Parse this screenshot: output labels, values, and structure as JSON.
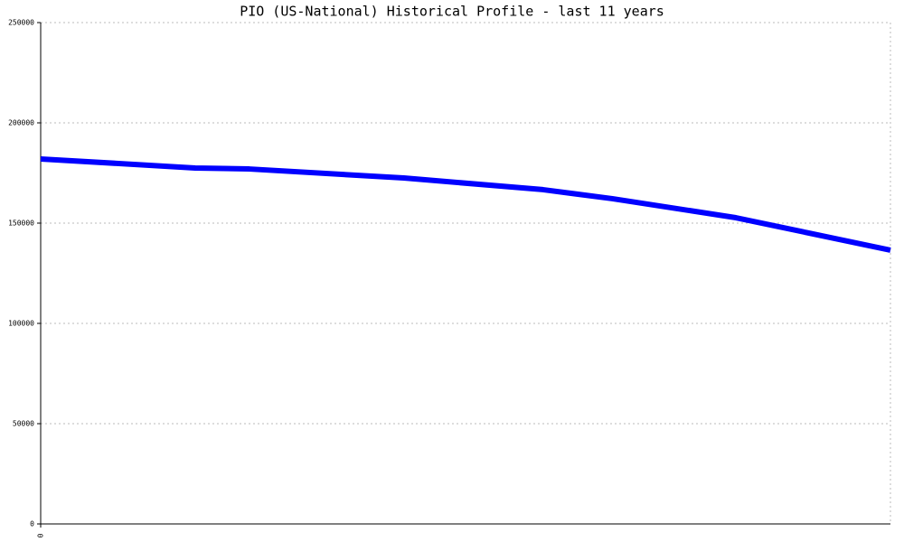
{
  "chart_data": {
    "type": "line",
    "title": "PIO (US-National) Historical Profile - last 11 years",
    "x": [
      0,
      2,
      2.7,
      4.7,
      6.5,
      7.4,
      9,
      11
    ],
    "series": [
      {
        "color": "#0000ff",
        "values": [
          182000,
          177500,
          177000,
          172500,
          166700,
          162200,
          152700,
          136500
        ]
      }
    ],
    "xlim": [
      0,
      11
    ],
    "xticks": [
      0
    ],
    "ylim": [
      0,
      250000
    ],
    "yticks": [
      0,
      50000,
      100000,
      150000,
      200000,
      250000
    ],
    "grid": true
  }
}
